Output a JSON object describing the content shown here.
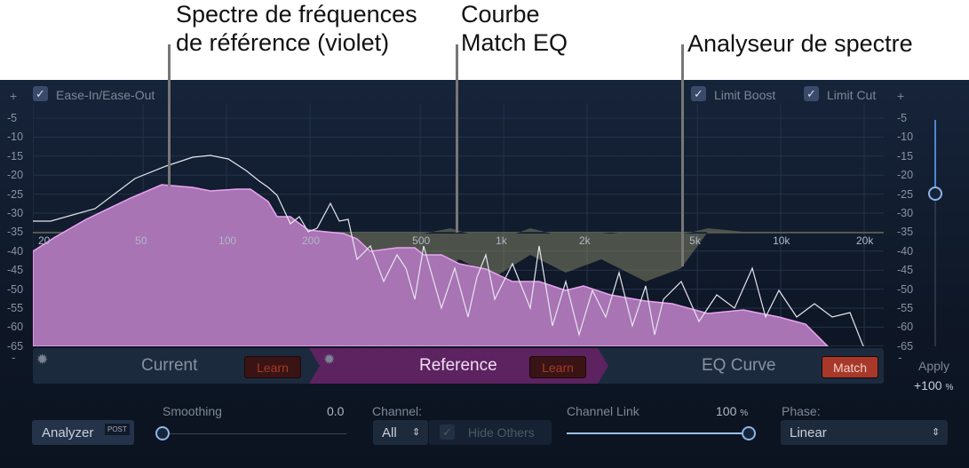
{
  "callouts": {
    "reference": "Spectre de fréquences\nde référence (violet)",
    "reference_l1": "Spectre de fréquences",
    "reference_l2": "de référence (violet)",
    "curve_l1": "Courbe",
    "curve_l2": "Match EQ",
    "analyzer": "Analyseur de spectre"
  },
  "top": {
    "plus_left": "+",
    "plus_right": "+",
    "ease": "Ease-In/Ease-Out",
    "ease_checked": true,
    "limit_boost": "Limit Boost",
    "limit_boost_checked": true,
    "limit_cut": "Limit Cut",
    "limit_cut_checked": true,
    "check": "✓"
  },
  "db_ticks": [
    "-5",
    "-10",
    "-15",
    "-20",
    "-25",
    "-30",
    "-35",
    "-40",
    "-45",
    "-50",
    "-55",
    "-60",
    "-65"
  ],
  "minus": "-",
  "freq_ticks": [
    "20",
    "50",
    "100",
    "200",
    "500",
    "1k",
    "2k",
    "5k",
    "10k",
    "20k"
  ],
  "sections": {
    "current": "Current",
    "current_learn": "Learn",
    "reference": "Reference",
    "reference_learn": "Learn",
    "eq_curve": "EQ Curve",
    "match": "Match"
  },
  "apply": {
    "label": "Apply",
    "value": "+100",
    "unit": "%",
    "level": 1.0
  },
  "bottom": {
    "analyzer": "Analyzer",
    "post": "POST",
    "smoothing_label": "Smoothing",
    "smoothing_value": "0.0",
    "channel_label": "Channel:",
    "channel_value": "All",
    "hide_others": "Hide Others",
    "channel_link_label": "Channel Link",
    "channel_link_value": "100",
    "channel_link_unit": "%",
    "phase_label": "Phase:",
    "phase_value": "Linear",
    "updown": "⇕"
  },
  "colors": {
    "reference": "#c58fd8",
    "match_button": "#b8402e",
    "reference_section": "#5c2360"
  }
}
